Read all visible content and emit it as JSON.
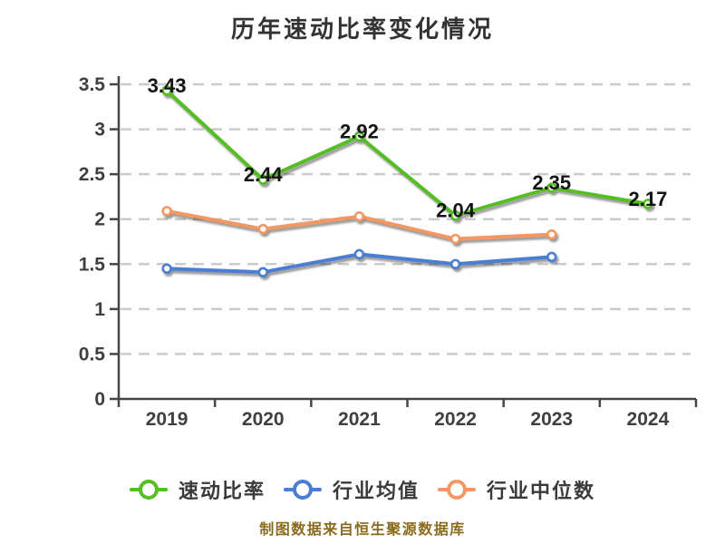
{
  "title": "历年速动比率变化情况",
  "footer": "制图数据来自恒生聚源数据库",
  "colors": {
    "quick_ratio": "#54be23",
    "industry_avg": "#4a7ed2",
    "industry_median": "#f39763",
    "grid": "#cbcbcb",
    "axis": "#454545",
    "tick_label": "#3f3f3f",
    "data_label": "#141414",
    "title": "#333333",
    "footer": "#8a6b1e",
    "background": "#ffffff"
  },
  "legend": {
    "items": [
      {
        "label": "速动比率"
      },
      {
        "label": "行业均值"
      },
      {
        "label": "行业中位数"
      }
    ]
  },
  "chart_data": {
    "type": "line",
    "title": "历年速动比率变化情况",
    "categories": [
      "2019",
      "2020",
      "2021",
      "2022",
      "2023",
      "2024"
    ],
    "series": [
      {
        "name": "速动比率",
        "color": "#54be23",
        "values": [
          3.43,
          2.44,
          2.92,
          2.04,
          2.35,
          2.17
        ],
        "data_labels": true
      },
      {
        "name": "行业均值",
        "color": "#4a7ed2",
        "values": [
          1.45,
          1.41,
          1.61,
          1.5,
          1.58,
          null
        ],
        "data_labels": false
      },
      {
        "name": "行业中位数",
        "color": "#f39763",
        "values": [
          2.09,
          1.89,
          2.03,
          1.78,
          1.83,
          null
        ],
        "data_labels": false
      }
    ],
    "ylim": [
      0,
      3.5
    ],
    "ytick_step": 0.5,
    "ytick_labels": [
      "0",
      "0.5",
      "1",
      "1.5",
      "2",
      "2.5",
      "3",
      "3.5"
    ],
    "grid": "horizontal-dashed",
    "legend_position": "bottom",
    "marker": "white-filled-circle",
    "source_note": "制图数据来自恒生聚源数据库"
  }
}
